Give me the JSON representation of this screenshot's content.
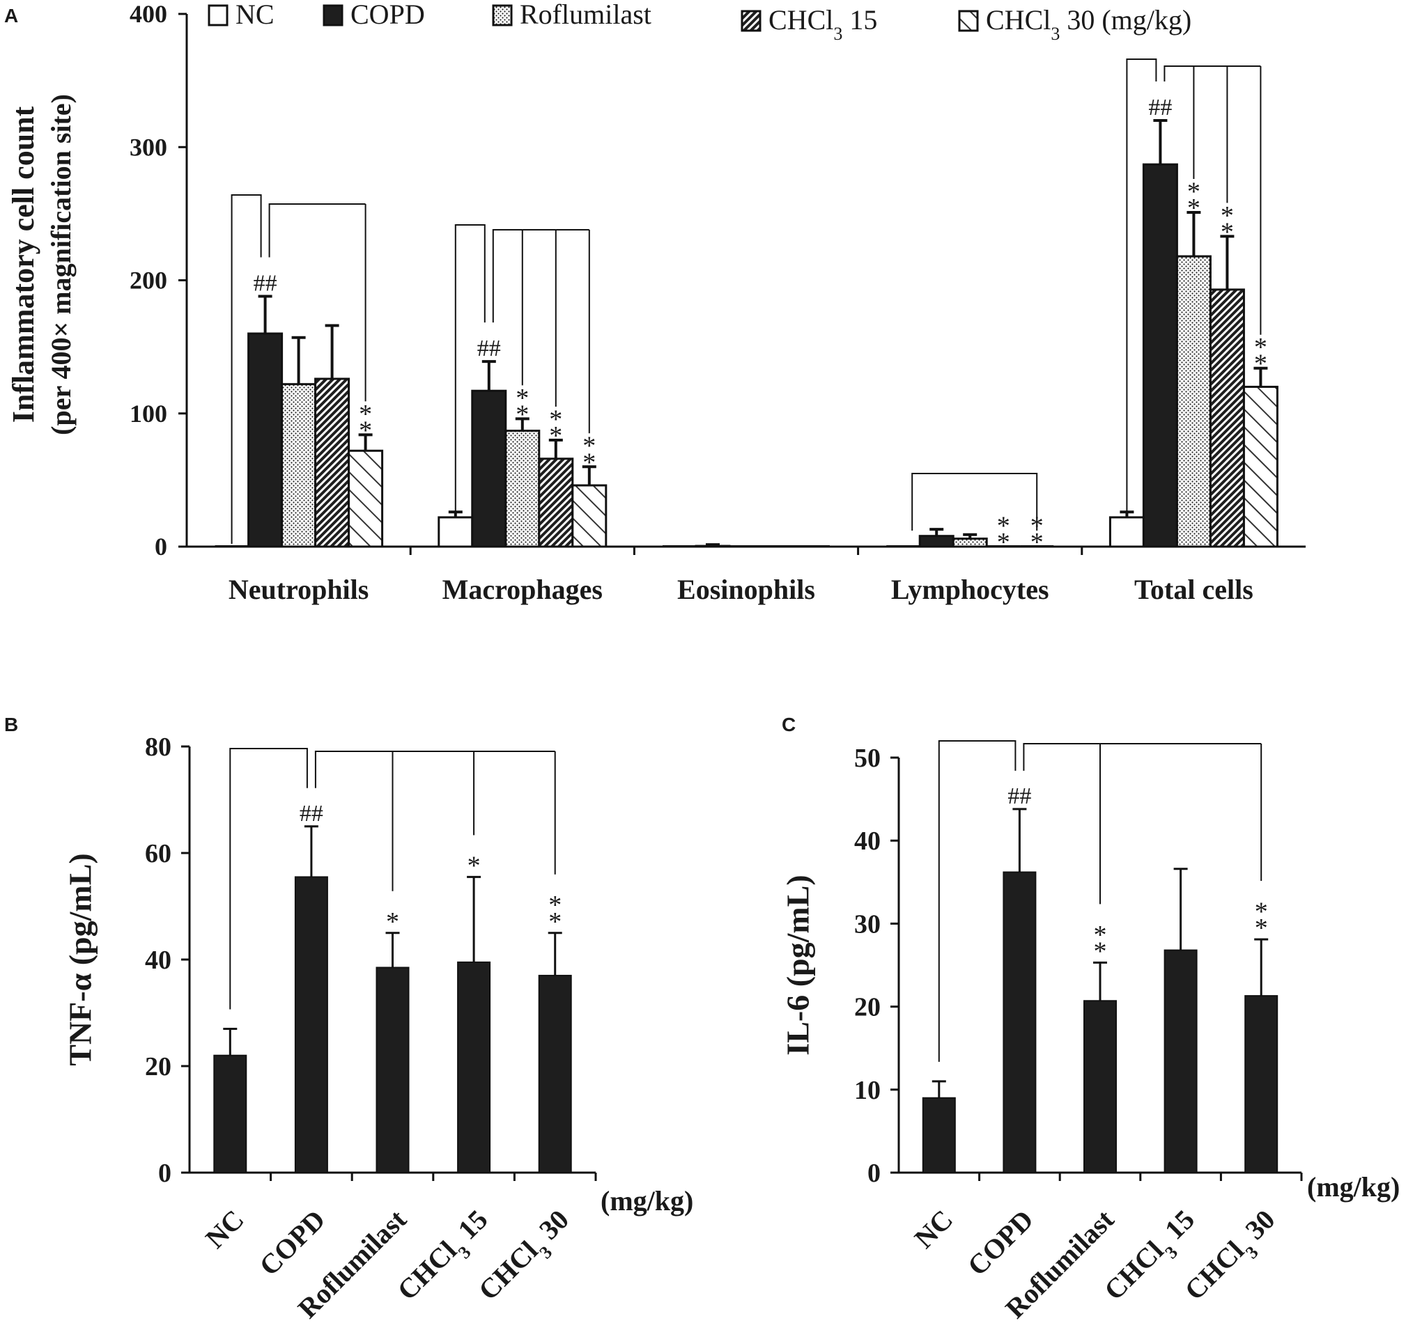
{
  "chart_data": [
    {
      "panel": "A",
      "type": "bar",
      "ylabel": "Inflammatory cell count",
      "ylabel2": "(per 400× magnification site)",
      "ylim": [
        0,
        400
      ],
      "yticks": [
        "0",
        "100",
        "200",
        "300",
        "400"
      ],
      "categories": [
        "Neutrophils",
        "Macrophages",
        "Eosinophils",
        "Lymphocytes",
        "Total cells"
      ],
      "series": [
        {
          "name": "NC",
          "values": [
            0,
            22,
            0,
            0,
            22
          ],
          "errors": [
            0,
            4,
            0,
            0,
            4
          ]
        },
        {
          "name": "COPD",
          "values": [
            160,
            117,
            0.5,
            8,
            287
          ],
          "errors": [
            28,
            22,
            1,
            5,
            33
          ]
        },
        {
          "name": "Roflumilast",
          "values": [
            122,
            87,
            0,
            6,
            218
          ],
          "errors": [
            35,
            9,
            0,
            3,
            33
          ]
        },
        {
          "name": "CHCl3 15",
          "values": [
            126,
            66,
            0,
            0,
            193
          ],
          "errors": [
            40,
            14,
            0,
            0,
            40
          ]
        },
        {
          "name": "CHCl3 30",
          "values": [
            72,
            46,
            0,
            0,
            120
          ],
          "errors": [
            12,
            14,
            0,
            0,
            14
          ]
        }
      ],
      "legend": [
        {
          "pre": "NC",
          "sub": "",
          "post": ""
        },
        {
          "pre": "COPD",
          "sub": "",
          "post": ""
        },
        {
          "pre": "Roflumilast",
          "sub": "",
          "post": ""
        },
        {
          "pre": "CHCl",
          "sub": "3",
          "post": " 15"
        },
        {
          "pre": "CHCl",
          "sub": "3",
          "post": " 30 (mg/kg)"
        }
      ],
      "annotations": {
        "hash": "##",
        "star": "*",
        "marks": [
          {
            "group": 0,
            "bar": 1,
            "text": "##"
          },
          {
            "group": 0,
            "bar": 4,
            "text": "**"
          },
          {
            "group": 1,
            "bar": 1,
            "text": "##"
          },
          {
            "group": 1,
            "bar": 2,
            "text": "**"
          },
          {
            "group": 1,
            "bar": 3,
            "text": "**"
          },
          {
            "group": 1,
            "bar": 4,
            "text": "**"
          },
          {
            "group": 3,
            "bar": 3,
            "text": "**"
          },
          {
            "group": 3,
            "bar": 4,
            "text": "**"
          },
          {
            "group": 4,
            "bar": 1,
            "text": "##"
          },
          {
            "group": 4,
            "bar": 2,
            "text": "**"
          },
          {
            "group": 4,
            "bar": 3,
            "text": "**"
          },
          {
            "group": 4,
            "bar": 4,
            "text": "**"
          }
        ]
      }
    },
    {
      "panel": "B",
      "type": "bar",
      "ylabel": "TNF-α (pg/mL)",
      "ylim": [
        0,
        80
      ],
      "yticks": [
        "0",
        "20",
        "40",
        "60",
        "80"
      ],
      "unit_note": "(mg/kg)",
      "categories": [
        {
          "pre": "NC",
          "sub": "",
          "post": ""
        },
        {
          "pre": "COPD",
          "sub": "",
          "post": ""
        },
        {
          "pre": "Roflumilast",
          "sub": "",
          "post": ""
        },
        {
          "pre": "CHCl",
          "sub": "3",
          "post": " 15"
        },
        {
          "pre": "CHCl",
          "sub": "3",
          "post": " 30"
        }
      ],
      "values": [
        22,
        55.5,
        38.5,
        39.5,
        37
      ],
      "errors": [
        5,
        9.5,
        6.5,
        16,
        8
      ],
      "annotations": [
        "",
        "##",
        "*",
        "*",
        "**"
      ]
    },
    {
      "panel": "C",
      "type": "bar",
      "ylabel": "IL-6 (pg/mL)",
      "ylim": [
        0,
        50
      ],
      "yticks": [
        "0",
        "10",
        "20",
        "30",
        "40",
        "50"
      ],
      "unit_note": "(mg/kg)",
      "categories": [
        {
          "pre": "NC",
          "sub": "",
          "post": ""
        },
        {
          "pre": "COPD",
          "sub": "",
          "post": ""
        },
        {
          "pre": "Roflumilast",
          "sub": "",
          "post": ""
        },
        {
          "pre": "CHCl",
          "sub": "3",
          "post": " 15"
        },
        {
          "pre": "CHCl",
          "sub": "3",
          "post": " 30"
        }
      ],
      "values": [
        9,
        36.2,
        20.7,
        26.8,
        21.3
      ],
      "errors": [
        2,
        7.6,
        4.6,
        9.8,
        6.8
      ],
      "annotations": [
        "",
        "##",
        "**",
        "",
        "**"
      ]
    }
  ]
}
